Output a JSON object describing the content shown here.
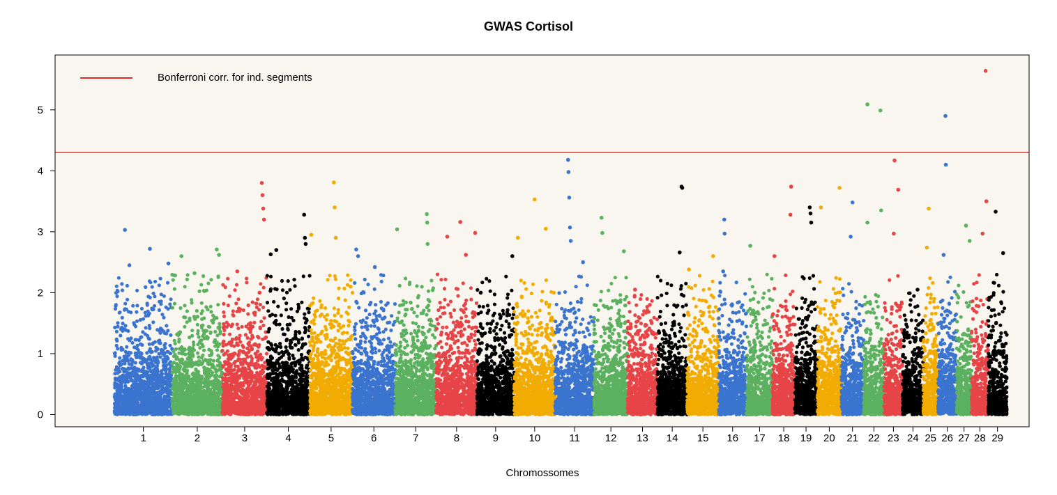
{
  "chart_data": {
    "type": "scatter",
    "title": "GWAS Cortisol",
    "xlabel": "Chromossomes",
    "ylabel": "",
    "ylim": [
      -0.2,
      5.9
    ],
    "yticks": [
      0,
      1,
      2,
      3,
      4,
      5
    ],
    "ytick_labels": [
      "0",
      "1",
      "2",
      "3",
      "4",
      "5"
    ],
    "grid": false,
    "legend": {
      "position": "top-left",
      "entries": [
        {
          "label": "Bonferroni corr. for ind. segments",
          "color": "#e8262a",
          "kind": "line"
        }
      ]
    },
    "threshold": {
      "label": "Bonferroni corr. for ind. segments",
      "value": 4.3,
      "color": "#e8262a"
    },
    "colors": [
      "#3b74cf",
      "#5cb160",
      "#e64447",
      "#000000",
      "#f2ab00"
    ],
    "background": "#f9f6f0",
    "chromosomes": [
      {
        "label": "1",
        "start": 0,
        "end": 155,
        "color": "#3b74cf",
        "max": 3.03,
        "top_points": [
          [
            28,
            3.03
          ],
          [
            40,
            2.45
          ],
          [
            95,
            2.72
          ],
          [
            145,
            2.48
          ]
        ]
      },
      {
        "label": "2",
        "start": 155,
        "end": 290,
        "color": "#5cb160",
        "max": 2.71,
        "top_points": [
          [
            25,
            2.6
          ],
          [
            60,
            2.32
          ],
          [
            120,
            2.71
          ],
          [
            126,
            2.62
          ]
        ]
      },
      {
        "label": "3",
        "start": 290,
        "end": 410,
        "color": "#e64447",
        "max": 3.8,
        "top_points": [
          [
            40,
            2.35
          ],
          [
            100,
            2.0
          ],
          [
            106,
            3.8
          ],
          [
            108,
            3.6
          ],
          [
            110,
            3.38
          ],
          [
            112,
            3.2
          ]
        ]
      },
      {
        "label": "4",
        "start": 410,
        "end": 525,
        "color": "#000000",
        "max": 3.28,
        "top_points": [
          [
            10,
            2.63
          ],
          [
            25,
            2.7
          ],
          [
            100,
            3.28
          ],
          [
            102,
            2.9
          ],
          [
            104,
            2.8
          ]
        ]
      },
      {
        "label": "5",
        "start": 525,
        "end": 640,
        "color": "#f2ab00",
        "max": 3.81,
        "top_points": [
          [
            4,
            2.95
          ],
          [
            65,
            3.81
          ],
          [
            67,
            3.4
          ],
          [
            70,
            2.9
          ],
          [
            110,
            2.1
          ]
        ]
      },
      {
        "label": "6",
        "start": 640,
        "end": 755,
        "color": "#3b74cf",
        "max": 2.71,
        "top_points": [
          [
            10,
            2.71
          ],
          [
            15,
            2.6
          ],
          [
            60,
            2.42
          ]
        ]
      },
      {
        "label": "7",
        "start": 755,
        "end": 865,
        "color": "#5cb160",
        "max": 3.29,
        "top_points": [
          [
            5,
            3.04
          ],
          [
            85,
            3.29
          ],
          [
            86,
            3.15
          ],
          [
            87,
            2.8
          ]
        ]
      },
      {
        "label": "8",
        "start": 865,
        "end": 975,
        "color": "#e64447",
        "max": 3.16,
        "top_points": [
          [
            30,
            2.92
          ],
          [
            65,
            3.16
          ],
          [
            80,
            2.62
          ],
          [
            105,
            2.98
          ]
        ]
      },
      {
        "label": "9",
        "start": 975,
        "end": 1075,
        "color": "#000000",
        "max": 2.6,
        "top_points": [
          [
            10,
            2.0
          ],
          [
            95,
            2.6
          ]
        ]
      },
      {
        "label": "10",
        "start": 1075,
        "end": 1185,
        "color": "#f2ab00",
        "max": 3.53,
        "top_points": [
          [
            10,
            2.9
          ],
          [
            55,
            3.53
          ],
          [
            85,
            3.05
          ]
        ]
      },
      {
        "label": "11",
        "start": 1185,
        "end": 1290,
        "color": "#3b74cf",
        "max": 4.18,
        "top_points": [
          [
            35,
            4.18
          ],
          [
            36,
            3.98
          ],
          [
            38,
            3.56
          ],
          [
            40,
            3.07
          ],
          [
            42,
            2.85
          ],
          [
            75,
            2.5
          ]
        ]
      },
      {
        "label": "12",
        "start": 1290,
        "end": 1380,
        "color": "#5cb160",
        "max": 3.23,
        "top_points": [
          [
            20,
            3.23
          ],
          [
            22,
            2.98
          ],
          [
            80,
            2.68
          ]
        ]
      },
      {
        "label": "13",
        "start": 1380,
        "end": 1460,
        "color": "#e64447",
        "max": 2.05,
        "top_points": [
          [
            20,
            2.05
          ],
          [
            60,
            1.8
          ]
        ]
      },
      {
        "label": "14",
        "start": 1460,
        "end": 1540,
        "color": "#000000",
        "max": 3.74,
        "top_points": [
          [
            65,
            3.74
          ],
          [
            67,
            3.72
          ],
          [
            60,
            2.66
          ]
        ]
      },
      {
        "label": "15",
        "start": 1540,
        "end": 1625,
        "color": "#f2ab00",
        "max": 2.6,
        "top_points": [
          [
            5,
            2.38
          ],
          [
            70,
            2.6
          ]
        ]
      },
      {
        "label": "16",
        "start": 1625,
        "end": 1700,
        "color": "#3b74cf",
        "max": 3.2,
        "top_points": [
          [
            15,
            3.2
          ],
          [
            16,
            2.97
          ],
          [
            12,
            2.35
          ]
        ]
      },
      {
        "label": "17",
        "start": 1700,
        "end": 1770,
        "color": "#5cb160",
        "max": 2.77,
        "top_points": [
          [
            10,
            2.77
          ]
        ]
      },
      {
        "label": "18",
        "start": 1770,
        "end": 1830,
        "color": "#e64447",
        "max": 3.74,
        "top_points": [
          [
            5,
            2.6
          ],
          [
            50,
            3.74
          ],
          [
            48,
            3.28
          ]
        ]
      },
      {
        "label": "19",
        "start": 1830,
        "end": 1890,
        "color": "#000000",
        "max": 3.4,
        "top_points": [
          [
            40,
            3.4
          ],
          [
            42,
            3.3
          ],
          [
            44,
            3.15
          ]
        ]
      },
      {
        "label": "20",
        "start": 1890,
        "end": 1955,
        "color": "#f2ab00",
        "max": 3.72,
        "top_points": [
          [
            10,
            3.4
          ],
          [
            60,
            3.72
          ]
        ]
      },
      {
        "label": "21",
        "start": 1955,
        "end": 2015,
        "color": "#3b74cf",
        "max": 3.48,
        "top_points": [
          [
            30,
            3.48
          ],
          [
            25,
            2.92
          ]
        ]
      },
      {
        "label": "22",
        "start": 2015,
        "end": 2070,
        "color": "#5cb160",
        "max": 5.09,
        "top_points": [
          [
            10,
            5.09
          ],
          [
            45,
            4.99
          ],
          [
            47,
            3.35
          ],
          [
            10,
            3.15
          ]
        ]
      },
      {
        "label": "23",
        "start": 2070,
        "end": 2120,
        "color": "#e64447",
        "max": 4.17,
        "top_points": [
          [
            28,
            4.17
          ],
          [
            38,
            3.69
          ],
          [
            26,
            2.97
          ]
        ]
      },
      {
        "label": "24",
        "start": 2120,
        "end": 2175,
        "color": "#000000",
        "max": 2.05,
        "top_points": [
          [
            40,
            2.05
          ]
        ]
      },
      {
        "label": "25",
        "start": 2175,
        "end": 2215,
        "color": "#f2ab00",
        "max": 3.38,
        "top_points": [
          [
            15,
            3.38
          ],
          [
            10,
            2.74
          ]
        ]
      },
      {
        "label": "26",
        "start": 2215,
        "end": 2265,
        "color": "#3b74cf",
        "max": 4.9,
        "top_points": [
          [
            20,
            4.9
          ],
          [
            21,
            4.1
          ],
          [
            15,
            2.62
          ]
        ]
      },
      {
        "label": "27",
        "start": 2265,
        "end": 2305,
        "color": "#5cb160",
        "max": 3.1,
        "top_points": [
          [
            25,
            3.1
          ],
          [
            35,
            2.85
          ]
        ]
      },
      {
        "label": "28",
        "start": 2305,
        "end": 2350,
        "color": "#e64447",
        "max": 5.64,
        "top_points": [
          [
            38,
            5.64
          ],
          [
            40,
            3.5
          ],
          [
            30,
            2.97
          ]
        ]
      },
      {
        "label": "29",
        "start": 2350,
        "end": 2400,
        "color": "#000000",
        "max": 3.33,
        "top_points": [
          [
            20,
            3.33
          ],
          [
            40,
            2.65
          ]
        ]
      }
    ],
    "xlim": [
      -160,
      2460
    ]
  }
}
